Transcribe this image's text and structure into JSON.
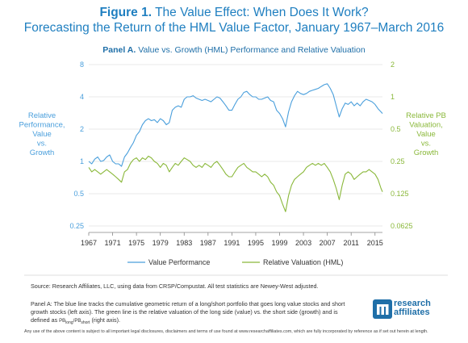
{
  "header": {
    "figure_label": "Figure 1.",
    "figure_title": "The Value Effect: When Does It Work?",
    "subtitle": "Forecasting the Return of the HML Value Factor, January 1967–March 2016",
    "panel_label": "Panel A.",
    "panel_title": "Value vs. Growth (HML) Performance and Relative Valuation"
  },
  "footer": {
    "source": "Source: Research Affiliates, LLC, using data from CRSP/Compustat. All test statistics are Newey-West adjusted.",
    "note_part1": "Panel A: The blue line tracks the cumulative geometric return of a long/short portfolio that goes long value stocks and short growth stocks (left axis). The green line is the relative valuation of the long side (value) vs. the short side (growth) and is defined as",
    "note_formula": "PB",
    "note_sub_long": "long",
    "note_sub_short": "short",
    "note_part2": "(right axis).",
    "disclaimer": "Any use of the above content is subject to all important legal disclosures, disclaimers and terms of use found at www.researchaffiliates.com, which are fully incorporated by reference as if set out herein at length."
  },
  "logo": {
    "line1": "research",
    "line2": "affiliates"
  },
  "colors": {
    "title": "#1f7fc0",
    "value_line": "#4a9fdc",
    "valuation_line": "#8ab83a",
    "grid": "#e0e0e0"
  },
  "chart_data": {
    "type": "line",
    "x_tick_labels": [
      "1967",
      "1971",
      "1975",
      "1979",
      "1983",
      "1987",
      "1991",
      "1995",
      "1999",
      "2003",
      "2007",
      "2011",
      "2015"
    ],
    "xlim": [
      1967,
      2016.25
    ],
    "left_axis": {
      "label_lines": [
        "Relative",
        "Performance,",
        "Value",
        "vs.",
        "Growth"
      ],
      "scale": "log",
      "ylim": [
        0.25,
        8
      ],
      "tick_labels": [
        "0.25",
        "0.5",
        "1",
        "2",
        "4",
        "8"
      ],
      "tick_values": [
        0.25,
        0.5,
        1,
        2,
        4,
        8
      ]
    },
    "right_axis": {
      "label_lines": [
        "Relative PB",
        "Valuation,",
        "Value",
        "vs.",
        "Growth"
      ],
      "scale": "log",
      "ylim": [
        0.0625,
        2
      ],
      "tick_labels": [
        "0.0625",
        "0.125",
        "0.25",
        "0.5",
        "1",
        "2"
      ],
      "tick_values": [
        0.0625,
        0.125,
        0.25,
        0.5,
        1,
        2
      ]
    },
    "grid": "horizontal",
    "legend_position": "bottom",
    "series": [
      {
        "name": "Value Performance",
        "axis": "left",
        "points": [
          [
            1967.0,
            1.0
          ],
          [
            1967.5,
            0.95
          ],
          [
            1968.0,
            1.05
          ],
          [
            1968.5,
            1.1
          ],
          [
            1969.0,
            1.0
          ],
          [
            1969.5,
            1.02
          ],
          [
            1970.0,
            1.1
          ],
          [
            1970.5,
            1.15
          ],
          [
            1971.0,
            1.0
          ],
          [
            1971.5,
            0.95
          ],
          [
            1972.0,
            0.95
          ],
          [
            1972.5,
            0.9
          ],
          [
            1973.0,
            1.1
          ],
          [
            1973.5,
            1.2
          ],
          [
            1974.0,
            1.35
          ],
          [
            1974.5,
            1.5
          ],
          [
            1975.0,
            1.75
          ],
          [
            1975.5,
            1.9
          ],
          [
            1976.0,
            2.2
          ],
          [
            1976.5,
            2.4
          ],
          [
            1977.0,
            2.5
          ],
          [
            1977.5,
            2.4
          ],
          [
            1978.0,
            2.45
          ],
          [
            1978.5,
            2.3
          ],
          [
            1979.0,
            2.5
          ],
          [
            1979.5,
            2.4
          ],
          [
            1980.0,
            2.2
          ],
          [
            1980.5,
            2.3
          ],
          [
            1981.0,
            3.0
          ],
          [
            1981.5,
            3.2
          ],
          [
            1982.0,
            3.3
          ],
          [
            1982.5,
            3.2
          ],
          [
            1983.0,
            3.8
          ],
          [
            1983.5,
            4.0
          ],
          [
            1984.0,
            4.0
          ],
          [
            1984.5,
            4.1
          ],
          [
            1985.0,
            3.9
          ],
          [
            1985.5,
            3.8
          ],
          [
            1986.0,
            3.7
          ],
          [
            1986.5,
            3.8
          ],
          [
            1987.0,
            3.7
          ],
          [
            1987.5,
            3.6
          ],
          [
            1988.0,
            3.8
          ],
          [
            1988.5,
            4.0
          ],
          [
            1989.0,
            3.9
          ],
          [
            1989.5,
            3.6
          ],
          [
            1990.0,
            3.3
          ],
          [
            1990.5,
            3.0
          ],
          [
            1991.0,
            3.0
          ],
          [
            1991.5,
            3.4
          ],
          [
            1992.0,
            3.8
          ],
          [
            1992.5,
            4.0
          ],
          [
            1993.0,
            4.4
          ],
          [
            1993.5,
            4.5
          ],
          [
            1994.0,
            4.2
          ],
          [
            1994.5,
            4.0
          ],
          [
            1995.0,
            4.0
          ],
          [
            1995.5,
            3.8
          ],
          [
            1996.0,
            3.8
          ],
          [
            1996.5,
            3.9
          ],
          [
            1997.0,
            4.0
          ],
          [
            1997.5,
            3.7
          ],
          [
            1998.0,
            3.6
          ],
          [
            1998.5,
            3.0
          ],
          [
            1999.0,
            2.8
          ],
          [
            1999.5,
            2.5
          ],
          [
            2000.0,
            2.1
          ],
          [
            2000.5,
            2.9
          ],
          [
            2001.0,
            3.6
          ],
          [
            2001.5,
            4.1
          ],
          [
            2002.0,
            4.5
          ],
          [
            2002.5,
            4.3
          ],
          [
            2003.0,
            4.2
          ],
          [
            2003.5,
            4.3
          ],
          [
            2004.0,
            4.5
          ],
          [
            2004.5,
            4.6
          ],
          [
            2005.0,
            4.7
          ],
          [
            2005.5,
            4.8
          ],
          [
            2006.0,
            5.0
          ],
          [
            2006.5,
            5.2
          ],
          [
            2007.0,
            5.3
          ],
          [
            2007.5,
            4.8
          ],
          [
            2008.0,
            4.2
          ],
          [
            2008.5,
            3.3
          ],
          [
            2009.0,
            2.6
          ],
          [
            2009.5,
            3.1
          ],
          [
            2010.0,
            3.5
          ],
          [
            2010.5,
            3.4
          ],
          [
            2011.0,
            3.6
          ],
          [
            2011.5,
            3.3
          ],
          [
            2012.0,
            3.5
          ],
          [
            2012.5,
            3.3
          ],
          [
            2013.0,
            3.6
          ],
          [
            2013.5,
            3.8
          ],
          [
            2014.0,
            3.7
          ],
          [
            2014.5,
            3.6
          ],
          [
            2015.0,
            3.4
          ],
          [
            2015.5,
            3.1
          ],
          [
            2016.0,
            2.9
          ],
          [
            2016.25,
            2.8
          ]
        ]
      },
      {
        "name": "Relative Valuation (HML)",
        "axis": "right",
        "points": [
          [
            1967.0,
            0.22
          ],
          [
            1967.5,
            0.2
          ],
          [
            1968.0,
            0.21
          ],
          [
            1968.5,
            0.2
          ],
          [
            1969.0,
            0.19
          ],
          [
            1969.5,
            0.2
          ],
          [
            1970.0,
            0.21
          ],
          [
            1970.5,
            0.2
          ],
          [
            1971.0,
            0.19
          ],
          [
            1971.5,
            0.18
          ],
          [
            1972.0,
            0.17
          ],
          [
            1972.5,
            0.16
          ],
          [
            1973.0,
            0.2
          ],
          [
            1973.5,
            0.21
          ],
          [
            1974.0,
            0.24
          ],
          [
            1974.5,
            0.26
          ],
          [
            1975.0,
            0.27
          ],
          [
            1975.5,
            0.25
          ],
          [
            1976.0,
            0.27
          ],
          [
            1976.5,
            0.26
          ],
          [
            1977.0,
            0.28
          ],
          [
            1977.5,
            0.27
          ],
          [
            1978.0,
            0.25
          ],
          [
            1978.5,
            0.24
          ],
          [
            1979.0,
            0.22
          ],
          [
            1979.5,
            0.24
          ],
          [
            1980.0,
            0.23
          ],
          [
            1980.5,
            0.2
          ],
          [
            1981.0,
            0.22
          ],
          [
            1981.5,
            0.24
          ],
          [
            1982.0,
            0.23
          ],
          [
            1982.5,
            0.25
          ],
          [
            1983.0,
            0.27
          ],
          [
            1983.5,
            0.26
          ],
          [
            1984.0,
            0.25
          ],
          [
            1984.5,
            0.23
          ],
          [
            1985.0,
            0.22
          ],
          [
            1985.5,
            0.23
          ],
          [
            1986.0,
            0.22
          ],
          [
            1986.5,
            0.24
          ],
          [
            1987.0,
            0.23
          ],
          [
            1987.5,
            0.22
          ],
          [
            1988.0,
            0.24
          ],
          [
            1988.5,
            0.25
          ],
          [
            1989.0,
            0.23
          ],
          [
            1989.5,
            0.21
          ],
          [
            1990.0,
            0.19
          ],
          [
            1990.5,
            0.18
          ],
          [
            1991.0,
            0.18
          ],
          [
            1991.5,
            0.2
          ],
          [
            1992.0,
            0.22
          ],
          [
            1992.5,
            0.23
          ],
          [
            1993.0,
            0.24
          ],
          [
            1993.5,
            0.22
          ],
          [
            1994.0,
            0.21
          ],
          [
            1994.5,
            0.2
          ],
          [
            1995.0,
            0.2
          ],
          [
            1995.5,
            0.19
          ],
          [
            1996.0,
            0.18
          ],
          [
            1996.5,
            0.19
          ],
          [
            1997.0,
            0.18
          ],
          [
            1997.5,
            0.16
          ],
          [
            1998.0,
            0.15
          ],
          [
            1998.5,
            0.13
          ],
          [
            1999.0,
            0.12
          ],
          [
            1999.5,
            0.1
          ],
          [
            2000.0,
            0.085
          ],
          [
            2000.5,
            0.12
          ],
          [
            2001.0,
            0.15
          ],
          [
            2001.5,
            0.17
          ],
          [
            2002.0,
            0.18
          ],
          [
            2002.5,
            0.19
          ],
          [
            2003.0,
            0.2
          ],
          [
            2003.5,
            0.22
          ],
          [
            2004.0,
            0.23
          ],
          [
            2004.5,
            0.24
          ],
          [
            2005.0,
            0.23
          ],
          [
            2005.5,
            0.24
          ],
          [
            2006.0,
            0.23
          ],
          [
            2006.5,
            0.24
          ],
          [
            2007.0,
            0.22
          ],
          [
            2007.5,
            0.2
          ],
          [
            2008.0,
            0.17
          ],
          [
            2008.5,
            0.14
          ],
          [
            2009.0,
            0.11
          ],
          [
            2009.5,
            0.15
          ],
          [
            2010.0,
            0.19
          ],
          [
            2010.5,
            0.2
          ],
          [
            2011.0,
            0.19
          ],
          [
            2011.5,
            0.17
          ],
          [
            2012.0,
            0.18
          ],
          [
            2012.5,
            0.19
          ],
          [
            2013.0,
            0.2
          ],
          [
            2013.5,
            0.2
          ],
          [
            2014.0,
            0.21
          ],
          [
            2014.5,
            0.2
          ],
          [
            2015.0,
            0.19
          ],
          [
            2015.5,
            0.17
          ],
          [
            2016.0,
            0.14
          ],
          [
            2016.25,
            0.13
          ]
        ]
      }
    ]
  }
}
